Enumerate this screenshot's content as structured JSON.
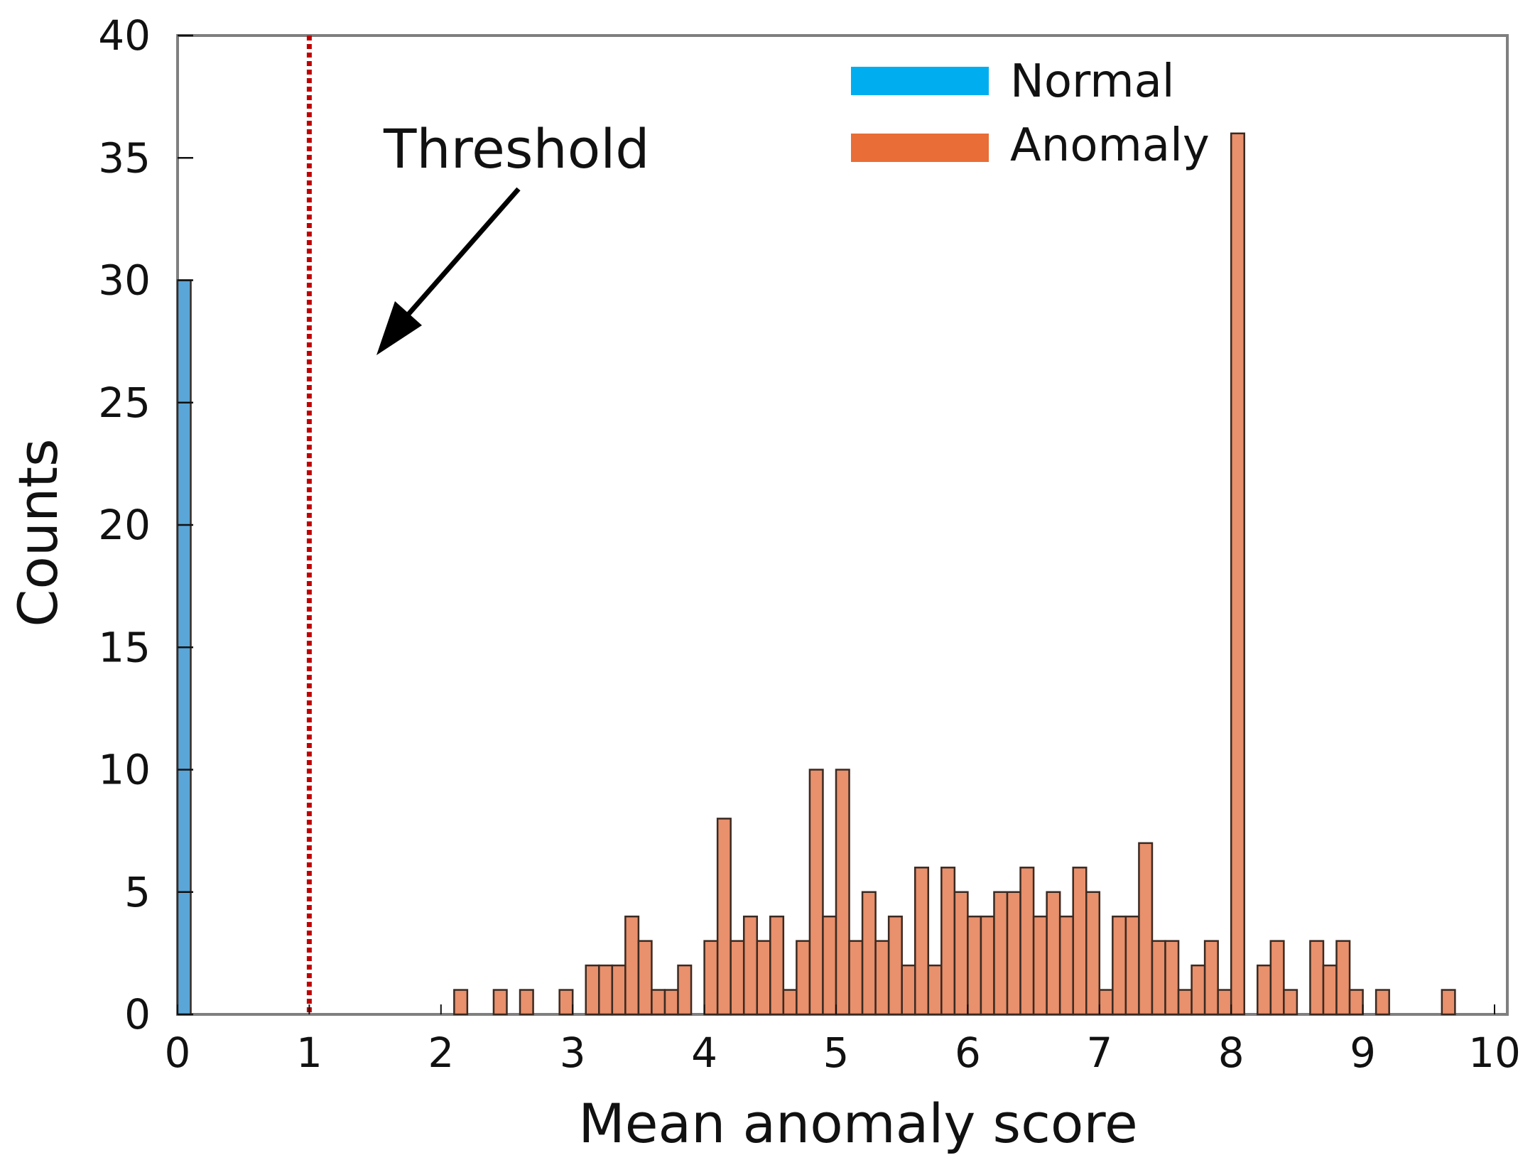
{
  "chart_data": {
    "type": "bar",
    "title": "",
    "xlabel": "Mean anomaly score",
    "ylabel": "Counts",
    "xlim": [
      0,
      10
    ],
    "ylim": [
      0,
      40
    ],
    "x_ticks": [
      "0",
      "1",
      "2",
      "3",
      "4",
      "5",
      "6",
      "7",
      "8",
      "9",
      "10"
    ],
    "y_ticks": [
      "0",
      "5",
      "10",
      "15",
      "20",
      "25",
      "30",
      "35",
      "40"
    ],
    "bin_width": 0.1,
    "grid": false,
    "legend_position": "top-right",
    "threshold": {
      "x": 1,
      "label": "Threshold",
      "color": "#c00000"
    },
    "series": [
      {
        "name": "Normal",
        "color": "#00aeef",
        "bar_color": "#5aa6d8",
        "bins": [
          {
            "start": 0.0,
            "count": 30
          }
        ]
      },
      {
        "name": "Anomaly",
        "color": "#e86d36",
        "bar_color": "#e9906c",
        "bins": [
          {
            "start": 2.1,
            "count": 1
          },
          {
            "start": 2.4,
            "count": 1
          },
          {
            "start": 2.6,
            "count": 1
          },
          {
            "start": 2.9,
            "count": 1
          },
          {
            "start": 3.1,
            "count": 2
          },
          {
            "start": 3.2,
            "count": 2
          },
          {
            "start": 3.3,
            "count": 2
          },
          {
            "start": 3.4,
            "count": 4
          },
          {
            "start": 3.5,
            "count": 3
          },
          {
            "start": 3.6,
            "count": 1
          },
          {
            "start": 3.7,
            "count": 1
          },
          {
            "start": 3.8,
            "count": 2
          },
          {
            "start": 4.0,
            "count": 3
          },
          {
            "start": 4.1,
            "count": 8
          },
          {
            "start": 4.2,
            "count": 3
          },
          {
            "start": 4.3,
            "count": 4
          },
          {
            "start": 4.4,
            "count": 3
          },
          {
            "start": 4.5,
            "count": 4
          },
          {
            "start": 4.6,
            "count": 1
          },
          {
            "start": 4.7,
            "count": 3
          },
          {
            "start": 4.8,
            "count": 10
          },
          {
            "start": 4.9,
            "count": 4
          },
          {
            "start": 5.0,
            "count": 10
          },
          {
            "start": 5.1,
            "count": 3
          },
          {
            "start": 5.2,
            "count": 5
          },
          {
            "start": 5.3,
            "count": 3
          },
          {
            "start": 5.4,
            "count": 4
          },
          {
            "start": 5.5,
            "count": 2
          },
          {
            "start": 5.6,
            "count": 6
          },
          {
            "start": 5.7,
            "count": 2
          },
          {
            "start": 5.8,
            "count": 6
          },
          {
            "start": 5.9,
            "count": 5
          },
          {
            "start": 6.0,
            "count": 4
          },
          {
            "start": 6.1,
            "count": 4
          },
          {
            "start": 6.2,
            "count": 5
          },
          {
            "start": 6.3,
            "count": 5
          },
          {
            "start": 6.4,
            "count": 6
          },
          {
            "start": 6.5,
            "count": 4
          },
          {
            "start": 6.6,
            "count": 5
          },
          {
            "start": 6.7,
            "count": 4
          },
          {
            "start": 6.8,
            "count": 6
          },
          {
            "start": 6.9,
            "count": 5
          },
          {
            "start": 7.0,
            "count": 1
          },
          {
            "start": 7.1,
            "count": 4
          },
          {
            "start": 7.2,
            "count": 4
          },
          {
            "start": 7.3,
            "count": 7
          },
          {
            "start": 7.4,
            "count": 3
          },
          {
            "start": 7.5,
            "count": 3
          },
          {
            "start": 7.6,
            "count": 1
          },
          {
            "start": 7.7,
            "count": 2
          },
          {
            "start": 7.8,
            "count": 3
          },
          {
            "start": 7.9,
            "count": 1
          },
          {
            "start": 8.0,
            "count": 36
          },
          {
            "start": 8.2,
            "count": 2
          },
          {
            "start": 8.3,
            "count": 3
          },
          {
            "start": 8.4,
            "count": 1
          },
          {
            "start": 8.6,
            "count": 3
          },
          {
            "start": 8.7,
            "count": 2
          },
          {
            "start": 8.8,
            "count": 3
          },
          {
            "start": 8.9,
            "count": 1
          },
          {
            "start": 9.1,
            "count": 1
          },
          {
            "start": 9.6,
            "count": 1
          }
        ]
      }
    ]
  }
}
